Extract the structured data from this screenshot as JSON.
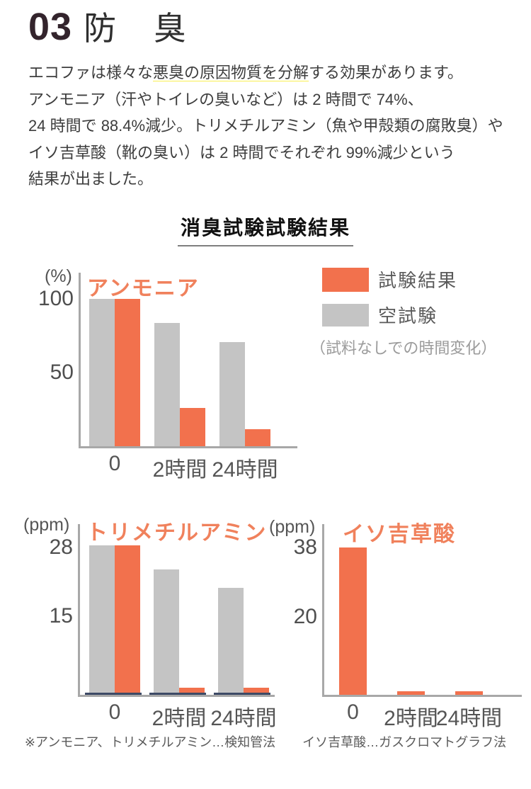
{
  "header": {
    "number": "03",
    "title": "防 臭"
  },
  "intro": {
    "line1_pre": "エコファは様々な",
    "line1_highlight": "悪臭の原因物質を分解",
    "line1_post": "する効果があります。",
    "line2": "アンモニア（汗やトイレの臭いなど）は 2 時間で 74%、",
    "line3": "24 時間で 88.4%減少。トリメチルアミン（魚や甲殻類の腐敗臭）や",
    "line4": "イソ吉草酸（靴の臭い）は 2 時間でそれぞれ 99%減少という",
    "line5": "結果が出ました。"
  },
  "section_title": "消臭試験試験結果",
  "legend": {
    "result_label": "試験結果",
    "blank_label": "空試験",
    "blank_note": "（試料なしでの時間変化）"
  },
  "footnote": {
    "seg1": "※アンモニア、トリメチルアミン…検知管法",
    "seg2": "イソ吉草酸…ガスクロマトグラフ法"
  },
  "colors": {
    "orange": "#f2714d",
    "gray": "#c4c4c4",
    "navy": "#3d4a66",
    "highlight_yellow": "#f9ef52",
    "title_orange": "#f0815c"
  },
  "chart_data": [
    {
      "type": "bar",
      "title": "アンモニア",
      "unit": "(%)",
      "categories": [
        "0",
        "2時間",
        "24時間"
      ],
      "series": [
        {
          "name": "空試験",
          "color": "gray",
          "values": [
            100,
            84,
            71
          ]
        },
        {
          "name": "試験結果",
          "color": "orange",
          "values": [
            100,
            26,
            11.6
          ]
        }
      ],
      "yticks": [
        100,
        50
      ],
      "ylim": [
        0,
        118
      ],
      "baseline_marks": false,
      "legend_position": "right"
    },
    {
      "type": "bar",
      "title": "トリメチルアミン",
      "unit": "(ppm)",
      "categories": [
        "0",
        "2時間",
        "24時間"
      ],
      "series": [
        {
          "name": "空試験",
          "color": "gray",
          "values": [
            28,
            23.5,
            20
          ]
        },
        {
          "name": "試験結果",
          "color": "orange",
          "values": [
            28,
            1,
            1
          ]
        }
      ],
      "yticks": [
        28,
        15
      ],
      "ylim": [
        0,
        32.5
      ],
      "baseline_marks": true
    },
    {
      "type": "bar",
      "title": "イソ吉草酸",
      "unit": "(ppm)",
      "categories": [
        "0",
        "2時間",
        "24時間"
      ],
      "series": [
        {
          "name": "試験結果",
          "color": "orange",
          "values": [
            38,
            1,
            1
          ]
        }
      ],
      "yticks": [
        38,
        20
      ],
      "ylim": [
        0,
        44
      ],
      "baseline_marks": false
    }
  ]
}
